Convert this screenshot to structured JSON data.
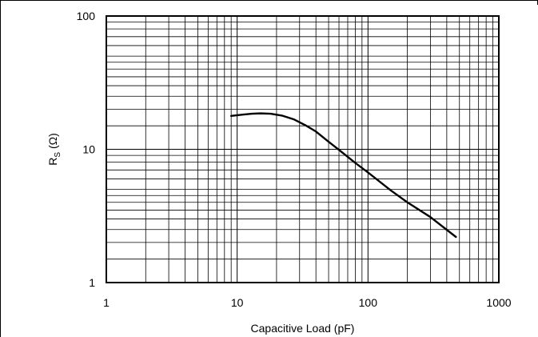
{
  "chart_data": {
    "type": "line",
    "title": "",
    "xlabel": "Capacitive Load (pF)",
    "ylabel_main": "R",
    "ylabel_sub": "S",
    "ylabel_unit": " (Ω)",
    "x_scale": "log",
    "y_scale": "log",
    "xlim": [
      1,
      1000
    ],
    "ylim": [
      1,
      100
    ],
    "x_ticks": [
      {
        "value": 1,
        "label": "1"
      },
      {
        "value": 10,
        "label": "10"
      },
      {
        "value": 100,
        "label": "100"
      },
      {
        "value": 1000,
        "label": "1000"
      }
    ],
    "y_ticks": [
      {
        "value": 1,
        "label": "1"
      },
      {
        "value": 10,
        "label": "10"
      },
      {
        "value": 100,
        "label": "100"
      }
    ],
    "grid": true,
    "legend": "none",
    "series": [
      {
        "x": [
          9,
          11,
          13,
          15,
          18,
          22,
          27,
          33,
          40,
          50,
          60,
          80,
          100,
          150,
          200,
          300,
          470
        ],
        "y": [
          17.8,
          18.2,
          18.5,
          18.6,
          18.5,
          17.9,
          16.8,
          15.2,
          13.6,
          11.4,
          9.9,
          7.9,
          6.7,
          4.9,
          4.0,
          3.1,
          2.2
        ]
      }
    ]
  }
}
